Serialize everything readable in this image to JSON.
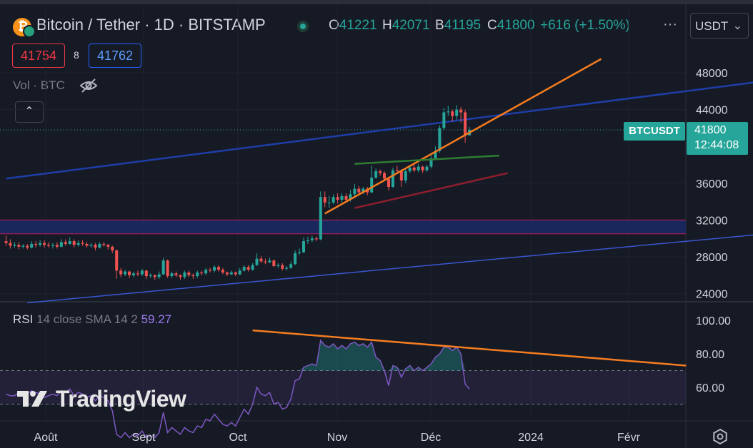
{
  "header": {
    "symbol_title": "Bitcoin / Tether · 1D · BITSTAMP",
    "ohlc": [
      {
        "key": "O",
        "value": "41221"
      },
      {
        "key": "H",
        "value": "42071"
      },
      {
        "key": "B",
        "value": "41195"
      },
      {
        "key": "C",
        "value": "41800"
      }
    ],
    "change": "+616 (+1.50%)",
    "more_label": "···",
    "currency": "USDT"
  },
  "trade": {
    "sell": "41754",
    "spread": "8",
    "buy": "41762"
  },
  "volume_label": "Vol · BTC",
  "collapse_label": "⌃",
  "rsi": {
    "name": "RSI",
    "params": "14 close SMA 14 2",
    "value": "59.27"
  },
  "watermark": "TradingView",
  "price_tag": {
    "symbol": "BTCUSDT",
    "price": "41800",
    "countdown": "12:44:08"
  },
  "colors": {
    "background": "#161a25",
    "up": "#26a69a",
    "down": "#ef5350",
    "orange_trend": "#f57c1f",
    "blue_channel": "#1e3ea8",
    "rsi_line": "#7e57c2"
  },
  "chart_data": {
    "type": "candlestick",
    "price_axis": {
      "ticks": [
        "48000",
        "44000",
        "36000",
        "32000",
        "28000",
        "24000"
      ],
      "range": [
        22500,
        50000
      ]
    },
    "rsi_axis": {
      "ticks": [
        "100.00",
        "80.00",
        "60.00"
      ],
      "range": [
        35,
        105
      ],
      "upper_band": 70,
      "lower_band": 50
    },
    "time_axis": {
      "ticks": [
        "Août",
        "Sept",
        "Oct",
        "Nov",
        "Déc",
        "2024",
        "Févr"
      ]
    },
    "candles": [
      [
        29700,
        29500,
        30300,
        29200
      ],
      [
        29500,
        29200,
        29900,
        28900
      ],
      [
        29200,
        29300,
        29600,
        29000
      ],
      [
        29300,
        29100,
        29600,
        28800
      ],
      [
        29100,
        29200,
        29400,
        28900
      ],
      [
        29200,
        29000,
        29400,
        28800
      ],
      [
        29000,
        29400,
        29700,
        28900
      ],
      [
        29400,
        29300,
        29700,
        29000
      ],
      [
        29300,
        29500,
        29800,
        29100
      ],
      [
        29500,
        29300,
        29800,
        29000
      ],
      [
        29300,
        29200,
        29600,
        29000
      ],
      [
        29200,
        29300,
        29500,
        28900
      ],
      [
        29300,
        29100,
        29600,
        28900
      ],
      [
        29100,
        29600,
        29900,
        29000
      ],
      [
        29600,
        29400,
        29900,
        29200
      ],
      [
        29400,
        29700,
        30100,
        29300
      ],
      [
        29700,
        29300,
        29900,
        29000
      ],
      [
        29300,
        29500,
        29800,
        29100
      ],
      [
        29500,
        29400,
        29800,
        29200
      ],
      [
        29400,
        29200,
        29600,
        29000
      ],
      [
        29200,
        29300,
        29500,
        29000
      ],
      [
        29300,
        29000,
        29500,
        28700
      ],
      [
        29000,
        29400,
        29600,
        28900
      ],
      [
        29400,
        29300,
        29600,
        29100
      ],
      [
        29300,
        29100,
        29400,
        28800
      ],
      [
        29100,
        28700,
        29200,
        28400
      ],
      [
        28700,
        26500,
        28800,
        25600
      ],
      [
        26500,
        26100,
        26800,
        25800
      ],
      [
        26100,
        26400,
        26600,
        25900
      ],
      [
        26400,
        26000,
        26500,
        25700
      ],
      [
        26000,
        26200,
        26400,
        25800
      ],
      [
        26200,
        26100,
        26500,
        25900
      ],
      [
        26100,
        26500,
        26700,
        25900
      ],
      [
        26500,
        25900,
        26600,
        25600
      ],
      [
        25900,
        26000,
        26200,
        25700
      ],
      [
        26000,
        25800,
        26100,
        25500
      ],
      [
        25800,
        26100,
        26400,
        25600
      ],
      [
        26100,
        27600,
        27900,
        26000
      ],
      [
        27600,
        25900,
        27700,
        25700
      ],
      [
        25900,
        26200,
        26400,
        25700
      ],
      [
        26200,
        26000,
        26400,
        25800
      ],
      [
        26000,
        25800,
        26100,
        25500
      ],
      [
        25800,
        26300,
        26500,
        25600
      ],
      [
        26300,
        26000,
        26500,
        25800
      ],
      [
        26000,
        25900,
        26200,
        25600
      ],
      [
        25900,
        26300,
        26500,
        25700
      ],
      [
        26300,
        26200,
        26500,
        26000
      ],
      [
        26200,
        26600,
        26800,
        26000
      ],
      [
        26600,
        26500,
        26800,
        26300
      ],
      [
        26500,
        26900,
        27100,
        26300
      ],
      [
        26900,
        26600,
        27100,
        26400
      ],
      [
        26600,
        26300,
        26800,
        26100
      ],
      [
        26300,
        26100,
        26400,
        25900
      ],
      [
        26100,
        26300,
        26500,
        26000
      ],
      [
        26300,
        26100,
        26400,
        25900
      ],
      [
        26100,
        26500,
        26800,
        26000
      ],
      [
        26500,
        26900,
        27100,
        26400
      ],
      [
        26900,
        26600,
        27100,
        26400
      ],
      [
        26600,
        27100,
        27300,
        26500
      ],
      [
        27100,
        27800,
        28400,
        27000
      ],
      [
        27800,
        27500,
        28100,
        27300
      ],
      [
        27500,
        27400,
        27800,
        27200
      ],
      [
        27400,
        27600,
        27900,
        27300
      ],
      [
        27600,
        27000,
        27700,
        26900
      ],
      [
        27000,
        27100,
        27300,
        26800
      ],
      [
        27100,
        26700,
        27300,
        26500
      ],
      [
        26700,
        26800,
        27000,
        26500
      ],
      [
        26800,
        27200,
        27500,
        26700
      ],
      [
        27200,
        28400,
        28700,
        27100
      ],
      [
        28400,
        28500,
        28900,
        28200
      ],
      [
        28500,
        29700,
        30100,
        28400
      ],
      [
        29700,
        29800,
        30200,
        29400
      ],
      [
        29800,
        30000,
        30300,
        29600
      ],
      [
        30000,
        29900,
        30200,
        29700
      ],
      [
        29900,
        34500,
        35100,
        29800
      ],
      [
        34500,
        33900,
        35100,
        33400
      ],
      [
        33900,
        33900,
        34600,
        33300
      ],
      [
        33900,
        34500,
        34800,
        33700
      ],
      [
        34500,
        34200,
        34900,
        33800
      ],
      [
        34200,
        34600,
        34900,
        33900
      ],
      [
        34600,
        34200,
        34900,
        33900
      ],
      [
        34200,
        34800,
        35300,
        34000
      ],
      [
        34800,
        35400,
        35900,
        34600
      ],
      [
        35400,
        35000,
        35700,
        34700
      ],
      [
        35000,
        35400,
        35600,
        34800
      ],
      [
        35400,
        35000,
        35600,
        34700
      ],
      [
        35000,
        36600,
        37900,
        34900
      ],
      [
        36600,
        37300,
        37600,
        36500
      ],
      [
        37300,
        37100,
        37500,
        36800
      ],
      [
        37100,
        36500,
        37300,
        36200
      ],
      [
        36500,
        35600,
        36600,
        35200
      ],
      [
        35600,
        37400,
        37700,
        35500
      ],
      [
        37400,
        37300,
        37900,
        37000
      ],
      [
        37300,
        36300,
        37500,
        35600
      ],
      [
        36300,
        37300,
        37600,
        36000
      ],
      [
        37300,
        37700,
        37900,
        37100
      ],
      [
        37700,
        37400,
        38100,
        37200
      ],
      [
        37400,
        37800,
        38100,
        37200
      ],
      [
        37800,
        37400,
        37900,
        37100
      ],
      [
        37400,
        37800,
        38000,
        37200
      ],
      [
        37800,
        38700,
        39000,
        37600
      ],
      [
        38700,
        39500,
        40000,
        38600
      ],
      [
        39500,
        42000,
        42300,
        39300
      ],
      [
        42000,
        43700,
        44200,
        41800
      ],
      [
        43700,
        43800,
        44400,
        43300
      ],
      [
        43800,
        43300,
        44000,
        42700
      ],
      [
        43300,
        44000,
        44500,
        42900
      ],
      [
        44000,
        43700,
        44300,
        42600
      ],
      [
        43700,
        41200,
        44000,
        40400
      ],
      [
        41200,
        41800,
        42100,
        41200
      ]
    ],
    "rsi_values": [
      56,
      55,
      55,
      57,
      55,
      56,
      58,
      57,
      56,
      54,
      55,
      56,
      55,
      58,
      57,
      59,
      55,
      57,
      56,
      54,
      55,
      52,
      55,
      54,
      52,
      46,
      32,
      30,
      33,
      30,
      32,
      31,
      34,
      30,
      31,
      30,
      33,
      45,
      33,
      36,
      34,
      32,
      36,
      34,
      33,
      37,
      36,
      41,
      40,
      44,
      41,
      38,
      37,
      39,
      37,
      42,
      47,
      44,
      50,
      60,
      56,
      55,
      57,
      50,
      51,
      47,
      48,
      53,
      64,
      65,
      72,
      73,
      74,
      73,
      88,
      85,
      84,
      86,
      83,
      85,
      83,
      86,
      87,
      85,
      86,
      84,
      87,
      78,
      76,
      70,
      61,
      73,
      72,
      66,
      71,
      73,
      70,
      72,
      70,
      72,
      74,
      78,
      80,
      84,
      84,
      82,
      84,
      80,
      62,
      59
    ],
    "annotations": [
      {
        "type": "trendline",
        "name": "rising channel top",
        "color": "#f57c1f",
        "from": [
          75,
          32700
        ],
        "to": [
          140,
          49500
        ]
      },
      {
        "type": "trendline",
        "name": "long-term channel top",
        "color": "#1e3ea8",
        "from": [
          0,
          36500
        ],
        "to": [
          202,
          48500
        ]
      },
      {
        "type": "trendline",
        "name": "long-term channel bottom",
        "color": "#3a56d0",
        "from": [
          5,
          23000
        ],
        "to": [
          202,
          31500
        ]
      },
      {
        "type": "trendline",
        "name": "consolidation top",
        "color": "#2e7d32",
        "from": [
          82,
          38100
        ],
        "to": [
          116,
          39000
        ]
      },
      {
        "type": "trendline",
        "name": "consolidation bottom",
        "color": "#8e1e2e",
        "from": [
          82,
          33300
        ],
        "to": [
          118,
          37100
        ]
      },
      {
        "type": "zone",
        "name": "resistance zone",
        "from_price": 30500,
        "to_price": 32000
      },
      {
        "type": "rsi_trendline",
        "name": "RSI divergence",
        "color": "#f57c1f",
        "from": [
          58,
          94
        ],
        "to": [
          160,
          73
        ]
      }
    ],
    "last_price": 41800
  }
}
